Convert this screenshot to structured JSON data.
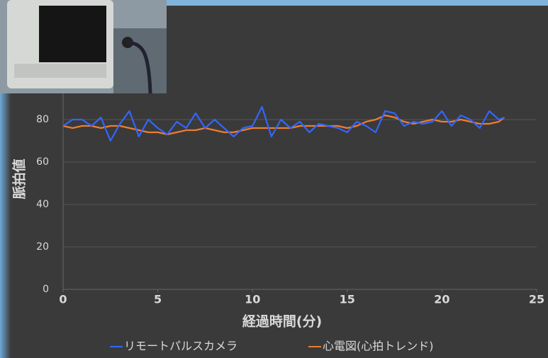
{
  "chart_data": {
    "type": "line",
    "x_label": "経過時間(分)",
    "y_label": "脈拍値",
    "x": [
      0,
      0.5,
      1,
      1.5,
      2,
      2.5,
      3,
      3.5,
      4,
      4.5,
      5,
      5.5,
      6,
      6.5,
      7,
      7.5,
      8,
      8.5,
      9,
      9.5,
      10,
      10.5,
      11,
      11.5,
      12,
      12.5,
      13,
      13.5,
      14,
      14.5,
      15,
      15.5,
      16,
      16.5,
      17,
      17.5,
      18,
      18.5,
      19,
      19.5,
      20,
      20.5,
      21,
      21.5,
      22,
      22.5,
      23,
      23.3
    ],
    "series": [
      {
        "name": "リモートパルスカメラ",
        "color": "#3366ff",
        "values": [
          77,
          80,
          80,
          77,
          81,
          70,
          78,
          84,
          72,
          80,
          76,
          73,
          79,
          76,
          83,
          76,
          80,
          76,
          72,
          76,
          77,
          86,
          72,
          80,
          76,
          79,
          74,
          78,
          77,
          76,
          74,
          79,
          77,
          74,
          84,
          83,
          77,
          79,
          78,
          79,
          84,
          77,
          82,
          80,
          76,
          84,
          80,
          81
        ]
      },
      {
        "name": "心電図(心拍トレンド)",
        "color": "#ed7d31",
        "values": [
          77,
          76,
          77,
          77,
          76,
          77,
          77,
          76,
          75,
          74,
          74,
          73,
          74,
          75,
          75,
          76,
          75,
          74,
          74,
          75,
          76,
          76,
          76,
          76,
          76,
          77,
          77,
          77,
          77,
          77,
          76,
          77,
          79,
          80,
          82,
          81,
          79,
          78,
          79,
          80,
          79,
          79,
          80,
          79,
          78,
          78,
          79,
          81
        ]
      }
    ],
    "xlim": [
      0,
      25
    ],
    "xticks": [
      0,
      5,
      10,
      15,
      20,
      25
    ],
    "ylim": [
      0,
      120
    ],
    "yticks": [
      0,
      20,
      40,
      60,
      80
    ],
    "grid": true
  }
}
